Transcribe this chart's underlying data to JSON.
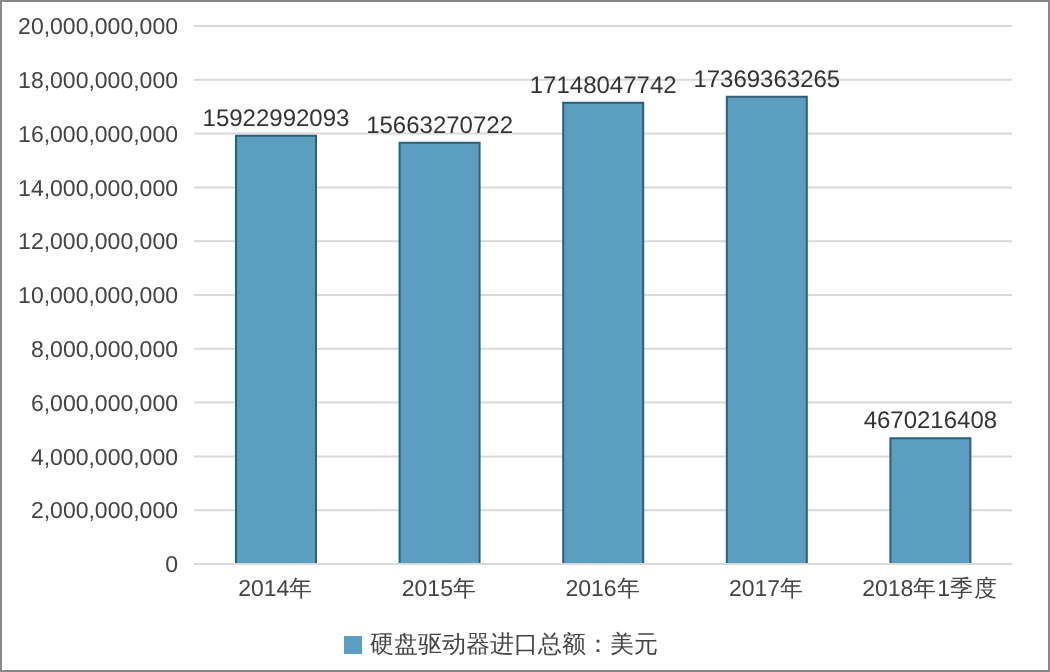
{
  "chart_data": {
    "type": "bar",
    "categories": [
      "2014年",
      "2015年",
      "2016年",
      "2017年",
      "2018年1季度"
    ],
    "series": [
      {
        "name": "硬盘驱动器进口总额：美元",
        "color": "#5b9ec0",
        "values": [
          15922992093,
          15663270722,
          17148047742,
          17369363265,
          4670216408
        ]
      }
    ],
    "ylim": [
      0,
      20000000000
    ],
    "yticks": [
      {
        "value": 0,
        "label": "0"
      },
      {
        "value": 2000000000,
        "label": "2,000,000,000"
      },
      {
        "value": 4000000000,
        "label": "4,000,000,000"
      },
      {
        "value": 6000000000,
        "label": "6,000,000,000"
      },
      {
        "value": 8000000000,
        "label": "8,000,000,000"
      },
      {
        "value": 10000000000,
        "label": "10,000,000,000"
      },
      {
        "value": 12000000000,
        "label": "12,000,000,000"
      },
      {
        "value": 14000000000,
        "label": "14,000,000,000"
      },
      {
        "value": 16000000000,
        "label": "16,000,000,000"
      },
      {
        "value": 18000000000,
        "label": "18,000,000,000"
      },
      {
        "value": 20000000000,
        "label": "20,000,000,000"
      }
    ],
    "grid": "y",
    "legend": "bottom",
    "data_labels": true
  }
}
